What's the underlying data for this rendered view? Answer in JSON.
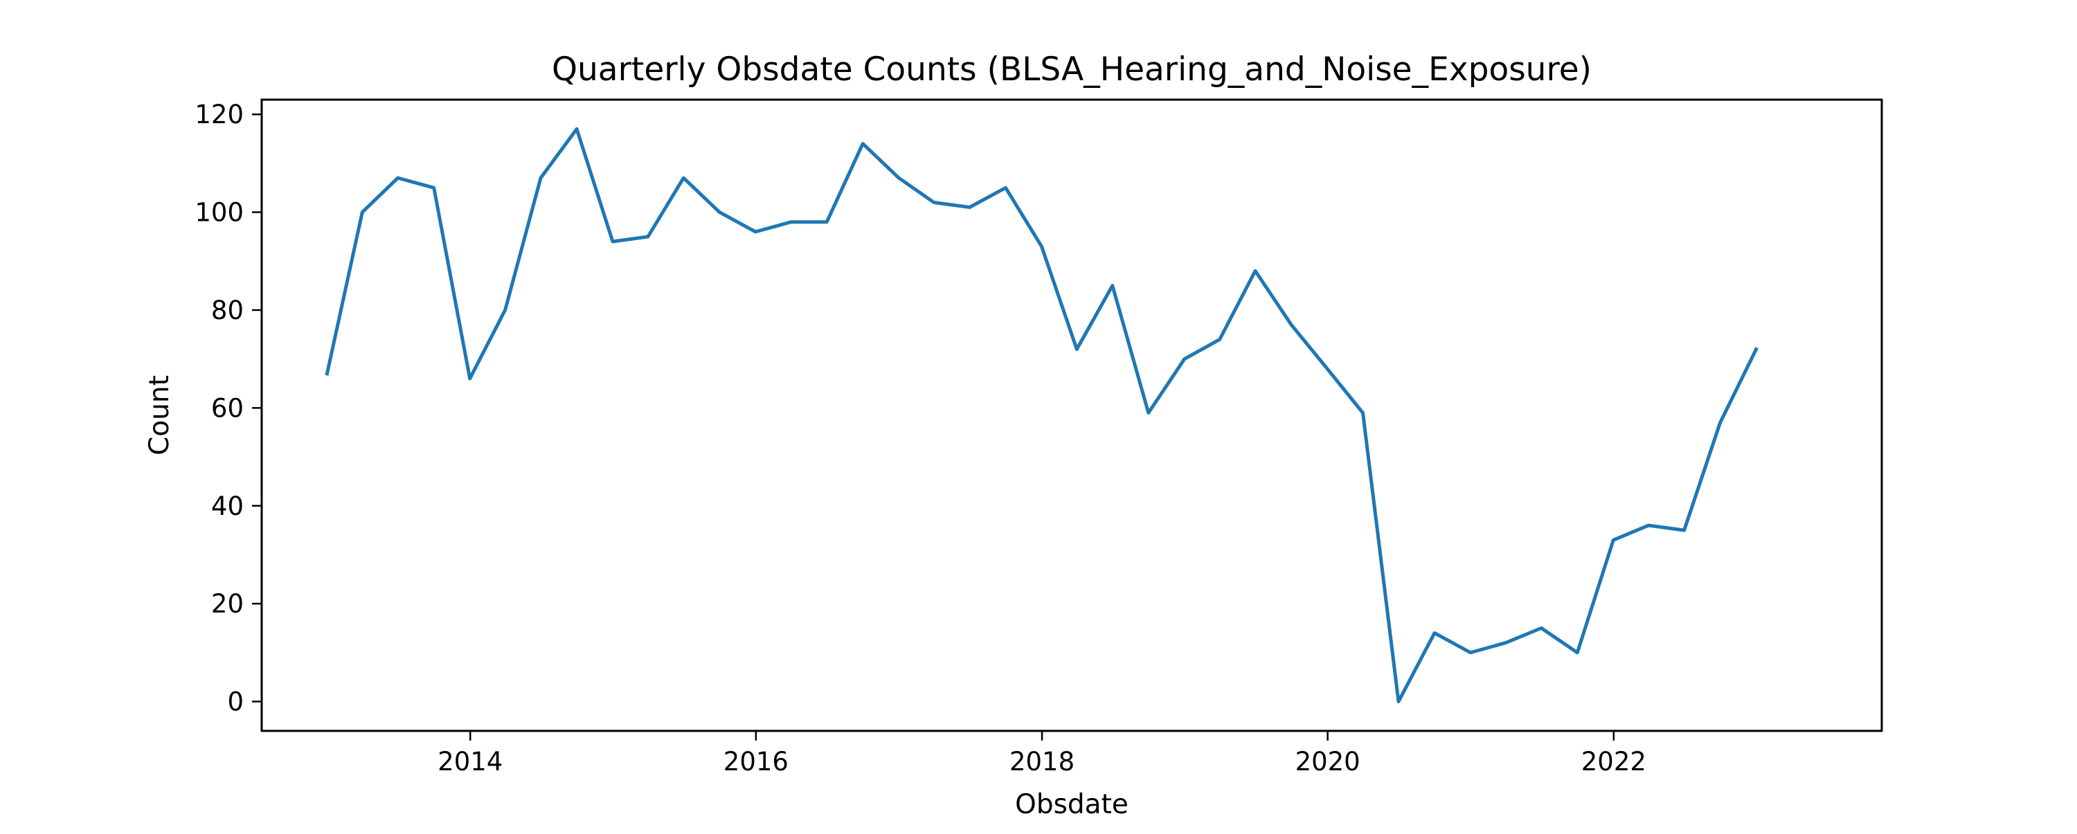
{
  "chart_data": {
    "type": "line",
    "title": "Quarterly Obsdate Counts (BLSA_Hearing_and_Noise_Exposure)",
    "xlabel": "Obsdate",
    "ylabel": "Count",
    "x_is_date": true,
    "xlim": [
      "2012-07-17",
      "2023-11-17"
    ],
    "ylim": [
      -6,
      123
    ],
    "x_ticks": [
      "2014-01-01",
      "2016-01-01",
      "2018-01-01",
      "2020-01-01",
      "2022-01-01"
    ],
    "x_tick_labels": [
      "2014",
      "2016",
      "2018",
      "2020",
      "2022"
    ],
    "y_ticks": [
      0,
      20,
      40,
      60,
      80,
      100,
      120
    ],
    "y_tick_labels": [
      "0",
      "20",
      "40",
      "60",
      "80",
      "100",
      "120"
    ],
    "grid": false,
    "line_color": "#1f77b4",
    "series": [
      {
        "x": [
          "2012-12-31",
          "2013-03-31",
          "2013-06-30",
          "2013-09-30",
          "2013-12-31",
          "2014-03-31",
          "2014-06-30",
          "2014-09-30",
          "2014-12-31",
          "2015-03-31",
          "2015-06-30",
          "2015-09-30",
          "2015-12-31",
          "2016-03-31",
          "2016-06-30",
          "2016-09-30",
          "2016-12-31",
          "2017-03-31",
          "2017-06-30",
          "2017-09-30",
          "2017-12-31",
          "2018-03-31",
          "2018-06-30",
          "2018-09-30",
          "2018-12-31",
          "2019-03-31",
          "2019-06-30",
          "2019-09-30",
          "2019-12-31",
          "2020-03-31",
          "2020-06-30",
          "2020-09-30",
          "2020-12-31",
          "2021-03-31",
          "2021-06-30",
          "2021-09-30",
          "2021-12-31",
          "2022-03-31",
          "2022-06-30",
          "2022-09-30",
          "2022-12-31"
        ],
        "values": [
          67,
          100,
          107,
          105,
          66,
          80,
          107,
          117,
          94,
          95,
          107,
          100,
          96,
          98,
          98,
          114,
          107,
          102,
          101,
          105,
          93,
          72,
          85,
          59,
          70,
          74,
          88,
          77,
          68,
          59,
          0,
          14,
          10,
          12,
          15,
          10,
          33,
          36,
          35,
          57,
          72
        ]
      }
    ]
  }
}
